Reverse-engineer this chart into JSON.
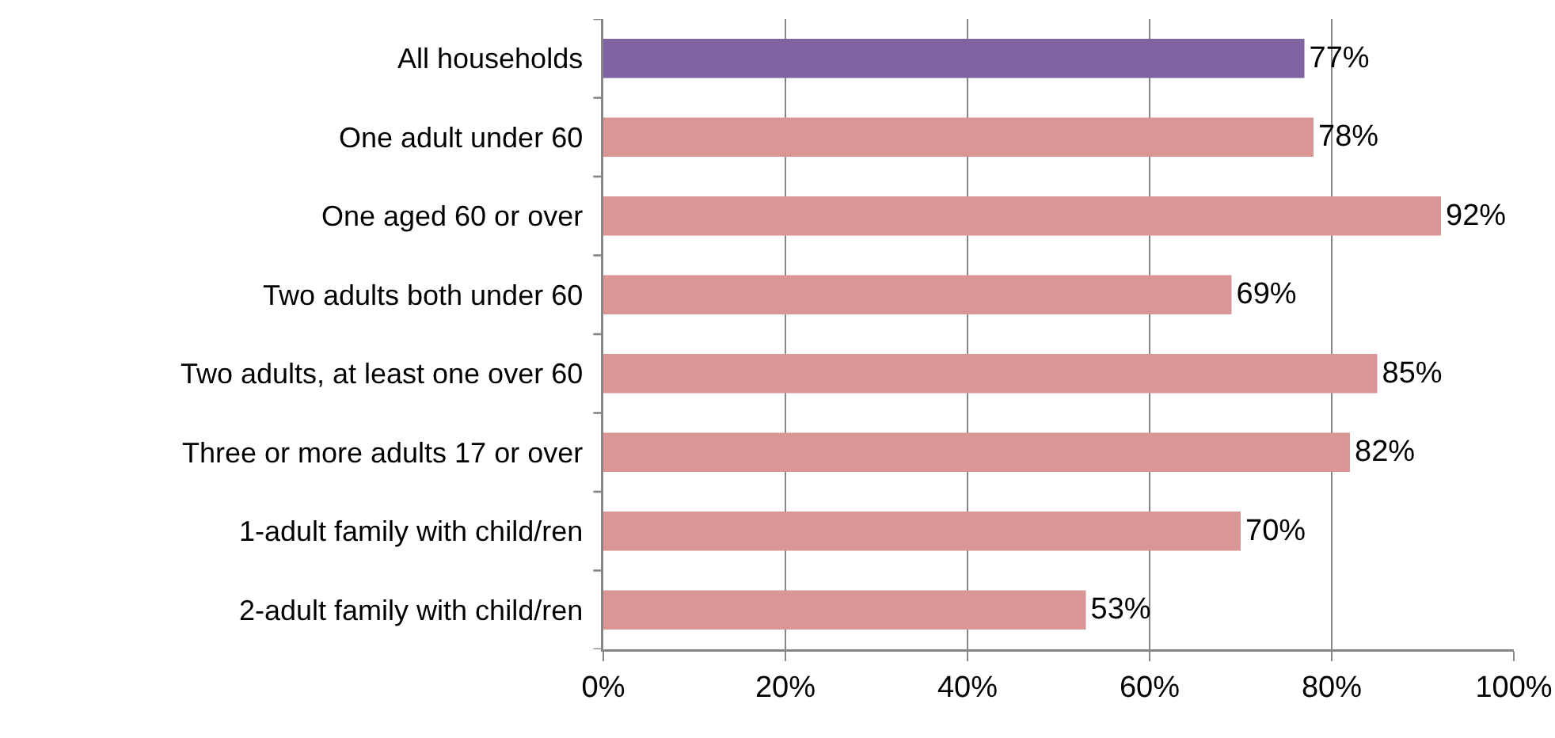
{
  "chart_data": {
    "type": "bar",
    "orientation": "horizontal",
    "categories": [
      "All households",
      "One adult under 60",
      "One aged 60 or over",
      "Two adults both under 60",
      "Two adults, at least one over 60",
      "Three or more adults 17 or over",
      "1-adult family with child/ren",
      "2-adult family with child/ren"
    ],
    "values": [
      77,
      78,
      92,
      69,
      85,
      82,
      70,
      53
    ],
    "colors": [
      "#8064a2",
      "#d99694",
      "#d99694",
      "#d99694",
      "#d99694",
      "#d99694",
      "#d99694",
      "#d99694"
    ],
    "value_labels": [
      "77%",
      "78%",
      "92%",
      "69%",
      "85%",
      "82%",
      "70%",
      "53%"
    ],
    "xlim": [
      0,
      100
    ],
    "xticks": [
      {
        "value": 0,
        "label": "0%"
      },
      {
        "value": 20,
        "label": "20%"
      },
      {
        "value": 40,
        "label": "40%"
      },
      {
        "value": 60,
        "label": "60%"
      },
      {
        "value": 80,
        "label": "80%"
      },
      {
        "value": 100,
        "label": "100%"
      }
    ],
    "grid": "x"
  }
}
